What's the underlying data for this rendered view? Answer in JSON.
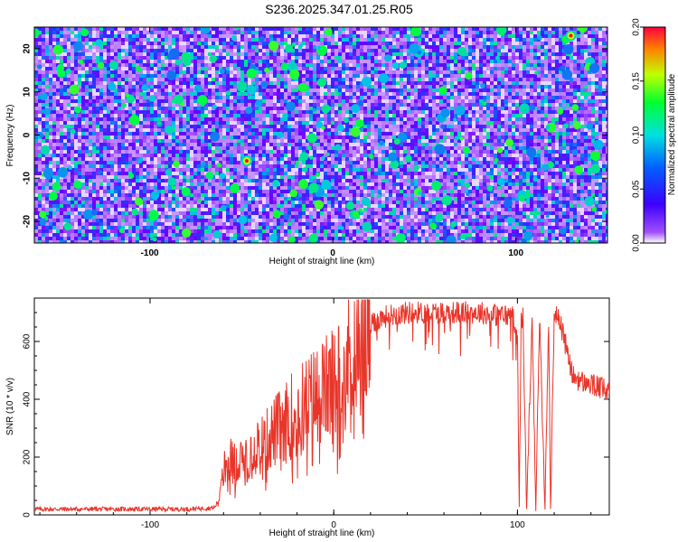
{
  "title": "S236.2025.347.01.25.R05",
  "chart_data": [
    {
      "type": "heatmap",
      "title": "S236.2025.347.01.25.R05",
      "xlabel": "Height of straight line (km)",
      "ylabel": "Frequency (Hz)",
      "xlim": [
        -163,
        150
      ],
      "ylim": [
        -25,
        25
      ],
      "xticks": [
        -100,
        0,
        100
      ],
      "yticks": [
        -20,
        -10,
        0,
        10,
        20
      ],
      "colorbar": {
        "label": "Normalized spectral amplitude",
        "range": [
          0.0,
          0.2
        ],
        "ticks": [
          "0.00",
          "0.05",
          "0.10",
          "0.15",
          "0.20"
        ],
        "colormap": "rainbow (purple-blue-cyan-green-yellow-red)"
      },
      "colors": {
        "background": "#ffffff",
        "low": "#8000ff",
        "high": "#ff0000"
      },
      "hotspots": [
        {
          "x": -47,
          "y": -6,
          "value": 0.2
        },
        {
          "x": 130,
          "y": 23,
          "value": 0.2
        }
      ]
    },
    {
      "type": "line",
      "xlabel": "Height of straight line (km)",
      "ylabel": "SNR (10 * v/v)",
      "xlim": [
        -163,
        150
      ],
      "ylim": [
        0,
        750
      ],
      "xticks": [
        -100,
        0,
        100
      ],
      "yticks": [
        0,
        200,
        400,
        600
      ],
      "color": "#e8352a",
      "series": [
        {
          "x": [
            -163,
            -120,
            -80,
            -65,
            -62,
            -60,
            -57,
            -55,
            -52,
            -50,
            -47,
            -45,
            -40,
            -38,
            -35,
            -30,
            -28,
            -25,
            -20,
            -15,
            -10,
            -5,
            0,
            5,
            10,
            15,
            20,
            25,
            30,
            40,
            50,
            60,
            70,
            80,
            90,
            98,
            100,
            101,
            102,
            103,
            105,
            108,
            110,
            112,
            115,
            117,
            118,
            120,
            123,
            125,
            128,
            130,
            135,
            140,
            145,
            150
          ],
          "y": [
            20,
            20,
            20,
            25,
            60,
            150,
            200,
            180,
            160,
            190,
            210,
            230,
            250,
            240,
            270,
            300,
            290,
            330,
            360,
            380,
            410,
            430,
            450,
            500,
            560,
            620,
            650,
            680,
            690,
            700,
            700,
            700,
            700,
            700,
            690,
            690,
            600,
            20,
            690,
            680,
            20,
            690,
            20,
            690,
            20,
            690,
            20,
            690,
            680,
            620,
            540,
            480,
            460,
            450,
            440,
            420
          ]
        }
      ]
    }
  ]
}
